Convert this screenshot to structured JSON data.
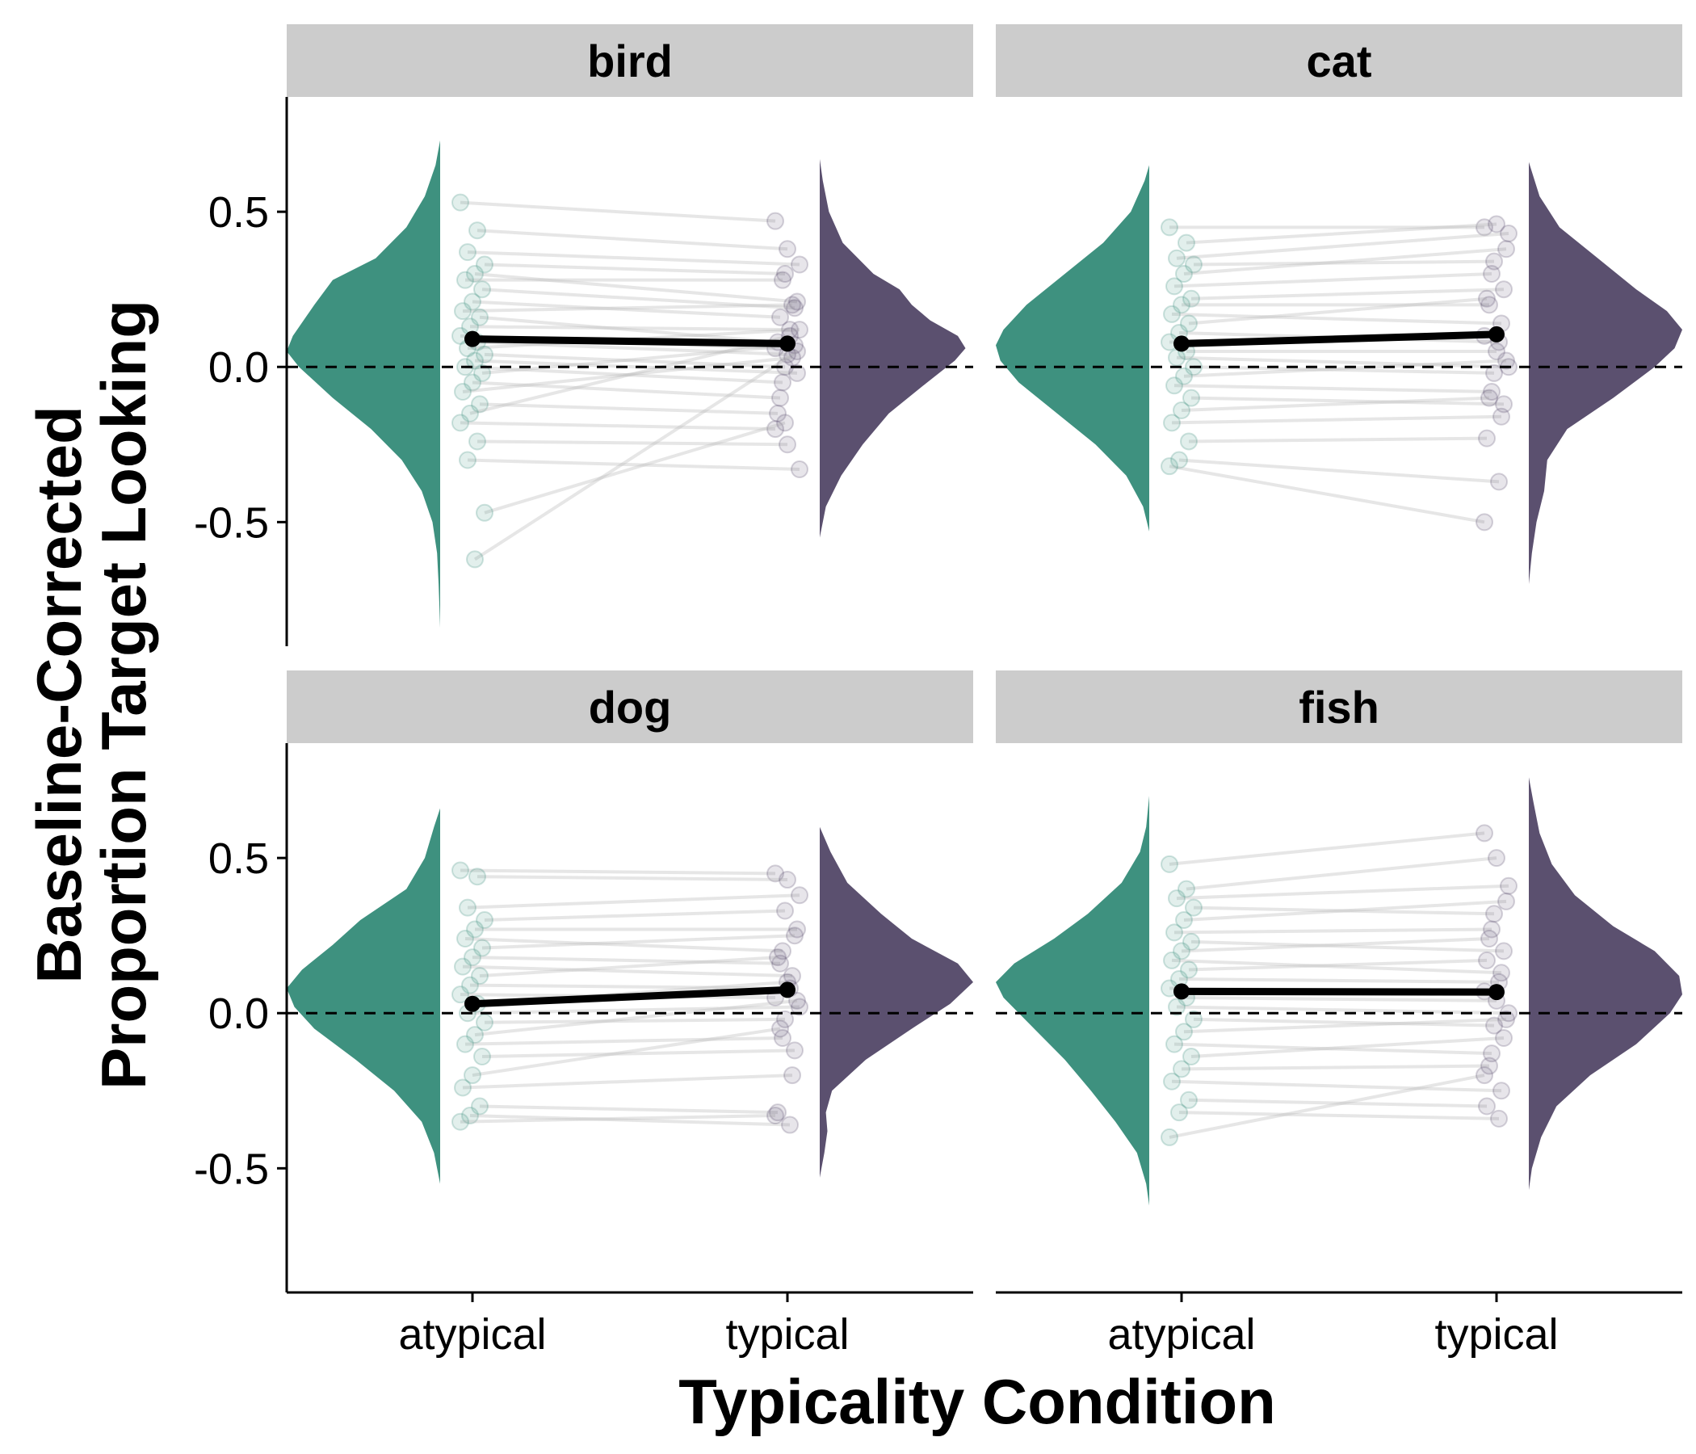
{
  "chart_data": {
    "type": "raincloud",
    "xlabel": "Typicality Condition",
    "ylabel_lines": [
      "Baseline-Corrected",
      "Proportion Target Looking"
    ],
    "categories": [
      "atypical",
      "typical"
    ],
    "yticks": [
      0.5,
      0.0,
      -0.5
    ],
    "ytick_labels": [
      "0.5",
      "0.0",
      "-0.5"
    ],
    "ylim": [
      -0.9,
      0.87
    ],
    "reference_line_y": 0,
    "colors": {
      "atypical": "#3e917f",
      "typical": "#5b506f",
      "strip": "#cccccc",
      "mean": "#000000",
      "lines": "#b8b8b8"
    },
    "panels": [
      {
        "name": "bird",
        "means": [
          0.09,
          0.075
        ],
        "error": [
          0.02,
          0.02
        ],
        "density": {
          "atypical": [
            [
              -0.84,
              0.0
            ],
            [
              -0.7,
              0.01
            ],
            [
              -0.6,
              0.02
            ],
            [
              -0.5,
              0.05
            ],
            [
              -0.4,
              0.12
            ],
            [
              -0.3,
              0.25
            ],
            [
              -0.2,
              0.45
            ],
            [
              -0.1,
              0.7
            ],
            [
              0.0,
              0.92
            ],
            [
              0.05,
              1.0
            ],
            [
              0.1,
              0.96
            ],
            [
              0.2,
              0.82
            ],
            [
              0.28,
              0.7
            ],
            [
              0.35,
              0.42
            ],
            [
              0.45,
              0.22
            ],
            [
              0.55,
              0.1
            ],
            [
              0.65,
              0.03
            ],
            [
              0.73,
              0.0
            ]
          ],
          "typical": [
            [
              -0.55,
              0.0
            ],
            [
              -0.45,
              0.04
            ],
            [
              -0.35,
              0.14
            ],
            [
              -0.25,
              0.28
            ],
            [
              -0.15,
              0.45
            ],
            [
              -0.05,
              0.7
            ],
            [
              0.02,
              0.88
            ],
            [
              0.06,
              0.95
            ],
            [
              0.1,
              0.9
            ],
            [
              0.15,
              0.72
            ],
            [
              0.2,
              0.6
            ],
            [
              0.25,
              0.52
            ],
            [
              0.3,
              0.35
            ],
            [
              0.4,
              0.15
            ],
            [
              0.5,
              0.06
            ],
            [
              0.6,
              0.02
            ],
            [
              0.67,
              0.0
            ]
          ]
        },
        "pairs": [
          [
            0.53,
            0.47
          ],
          [
            0.44,
            0.38
          ],
          [
            0.37,
            0.33
          ],
          [
            0.33,
            0.3
          ],
          [
            0.3,
            0.21
          ],
          [
            0.28,
            0.28
          ],
          [
            0.25,
            0.19
          ],
          [
            0.21,
            0.16
          ],
          [
            0.18,
            0.2
          ],
          [
            0.16,
            0.08
          ],
          [
            0.13,
            0.12
          ],
          [
            0.1,
            0.06
          ],
          [
            0.08,
            0.04
          ],
          [
            0.06,
            0.12
          ],
          [
            0.04,
            0.0
          ],
          [
            0.02,
            -0.02
          ],
          [
            0.0,
            -0.05
          ],
          [
            -0.02,
            0.07
          ],
          [
            -0.05,
            -0.1
          ],
          [
            -0.08,
            0.03
          ],
          [
            -0.12,
            -0.15
          ],
          [
            -0.15,
            0.1
          ],
          [
            -0.18,
            -0.2
          ],
          [
            -0.24,
            -0.25
          ],
          [
            -0.3,
            -0.33
          ],
          [
            -0.47,
            -0.18
          ],
          [
            -0.62,
            0.05
          ]
        ]
      },
      {
        "name": "cat",
        "means": [
          0.075,
          0.105
        ],
        "error": [
          0.02,
          0.02
        ],
        "density": {
          "atypical": [
            [
              -0.53,
              0.0
            ],
            [
              -0.45,
              0.04
            ],
            [
              -0.35,
              0.15
            ],
            [
              -0.25,
              0.35
            ],
            [
              -0.15,
              0.6
            ],
            [
              -0.05,
              0.85
            ],
            [
              0.02,
              0.97
            ],
            [
              0.07,
              1.0
            ],
            [
              0.12,
              0.95
            ],
            [
              0.2,
              0.8
            ],
            [
              0.3,
              0.55
            ],
            [
              0.4,
              0.3
            ],
            [
              0.5,
              0.12
            ],
            [
              0.6,
              0.03
            ],
            [
              0.65,
              0.0
            ]
          ],
          "typical": [
            [
              -0.7,
              0.0
            ],
            [
              -0.6,
              0.02
            ],
            [
              -0.5,
              0.05
            ],
            [
              -0.4,
              0.1
            ],
            [
              -0.3,
              0.12
            ],
            [
              -0.2,
              0.25
            ],
            [
              -0.1,
              0.55
            ],
            [
              0.0,
              0.82
            ],
            [
              0.06,
              0.95
            ],
            [
              0.12,
              1.0
            ],
            [
              0.18,
              0.9
            ],
            [
              0.25,
              0.7
            ],
            [
              0.35,
              0.45
            ],
            [
              0.45,
              0.2
            ],
            [
              0.55,
              0.07
            ],
            [
              0.66,
              0.0
            ]
          ]
        },
        "pairs": [
          [
            0.45,
            0.45
          ],
          [
            0.4,
            0.46
          ],
          [
            0.35,
            0.43
          ],
          [
            0.33,
            0.34
          ],
          [
            0.3,
            0.38
          ],
          [
            0.26,
            0.3
          ],
          [
            0.22,
            0.25
          ],
          [
            0.2,
            0.2
          ],
          [
            0.17,
            0.14
          ],
          [
            0.14,
            0.22
          ],
          [
            0.11,
            0.08
          ],
          [
            0.08,
            0.1
          ],
          [
            0.05,
            0.05
          ],
          [
            0.03,
            0.0
          ],
          [
            0.0,
            -0.02
          ],
          [
            -0.03,
            0.02
          ],
          [
            -0.06,
            -0.08
          ],
          [
            -0.1,
            -0.12
          ],
          [
            -0.14,
            -0.1
          ],
          [
            -0.18,
            -0.16
          ],
          [
            -0.24,
            -0.23
          ],
          [
            -0.3,
            -0.37
          ],
          [
            -0.32,
            -0.5
          ]
        ]
      },
      {
        "name": "dog",
        "means": [
          0.03,
          0.075
        ],
        "error": [
          0.02,
          0.02
        ],
        "density": {
          "atypical": [
            [
              -0.55,
              0.0
            ],
            [
              -0.45,
              0.04
            ],
            [
              -0.35,
              0.12
            ],
            [
              -0.25,
              0.3
            ],
            [
              -0.15,
              0.55
            ],
            [
              -0.05,
              0.82
            ],
            [
              0.02,
              0.95
            ],
            [
              0.08,
              1.0
            ],
            [
              0.14,
              0.9
            ],
            [
              0.22,
              0.7
            ],
            [
              0.3,
              0.52
            ],
            [
              0.4,
              0.22
            ],
            [
              0.5,
              0.1
            ],
            [
              0.6,
              0.04
            ],
            [
              0.66,
              0.0
            ]
          ],
          "typical": [
            [
              -0.53,
              0.0
            ],
            [
              -0.45,
              0.03
            ],
            [
              -0.38,
              0.05
            ],
            [
              -0.32,
              0.04
            ],
            [
              -0.25,
              0.08
            ],
            [
              -0.15,
              0.3
            ],
            [
              -0.05,
              0.6
            ],
            [
              0.03,
              0.85
            ],
            [
              0.1,
              1.0
            ],
            [
              0.16,
              0.9
            ],
            [
              0.24,
              0.6
            ],
            [
              0.32,
              0.4
            ],
            [
              0.42,
              0.18
            ],
            [
              0.52,
              0.07
            ],
            [
              0.6,
              0.0
            ]
          ]
        },
        "pairs": [
          [
            0.46,
            0.45
          ],
          [
            0.44,
            0.43
          ],
          [
            0.34,
            0.38
          ],
          [
            0.3,
            0.33
          ],
          [
            0.27,
            0.27
          ],
          [
            0.24,
            0.2
          ],
          [
            0.21,
            0.25
          ],
          [
            0.18,
            0.16
          ],
          [
            0.15,
            0.12
          ],
          [
            0.12,
            0.18
          ],
          [
            0.09,
            0.08
          ],
          [
            0.06,
            0.05
          ],
          [
            0.03,
            0.1
          ],
          [
            0.0,
            0.02
          ],
          [
            -0.03,
            -0.02
          ],
          [
            -0.07,
            0.04
          ],
          [
            -0.1,
            -0.08
          ],
          [
            -0.14,
            -0.12
          ],
          [
            -0.2,
            -0.05
          ],
          [
            -0.24,
            -0.2
          ],
          [
            -0.3,
            -0.32
          ],
          [
            -0.33,
            -0.36
          ],
          [
            -0.35,
            -0.33
          ]
        ]
      },
      {
        "name": "fish",
        "means": [
          0.07,
          0.068
        ],
        "error": [
          0.02,
          0.02
        ],
        "density": {
          "atypical": [
            [
              -0.62,
              0.0
            ],
            [
              -0.55,
              0.02
            ],
            [
              -0.45,
              0.08
            ],
            [
              -0.35,
              0.22
            ],
            [
              -0.25,
              0.38
            ],
            [
              -0.15,
              0.55
            ],
            [
              -0.05,
              0.75
            ],
            [
              0.05,
              0.95
            ],
            [
              0.1,
              1.0
            ],
            [
              0.16,
              0.88
            ],
            [
              0.24,
              0.62
            ],
            [
              0.32,
              0.4
            ],
            [
              0.42,
              0.18
            ],
            [
              0.52,
              0.06
            ],
            [
              0.6,
              0.02
            ],
            [
              0.7,
              0.0
            ]
          ],
          "typical": [
            [
              -0.57,
              0.0
            ],
            [
              -0.5,
              0.02
            ],
            [
              -0.4,
              0.08
            ],
            [
              -0.3,
              0.18
            ],
            [
              -0.2,
              0.4
            ],
            [
              -0.1,
              0.7
            ],
            [
              0.0,
              0.92
            ],
            [
              0.06,
              1.0
            ],
            [
              0.12,
              0.98
            ],
            [
              0.2,
              0.82
            ],
            [
              0.28,
              0.55
            ],
            [
              0.38,
              0.3
            ],
            [
              0.48,
              0.15
            ],
            [
              0.58,
              0.07
            ],
            [
              0.68,
              0.03
            ],
            [
              0.76,
              0.0
            ]
          ]
        },
        "pairs": [
          [
            0.48,
            0.58
          ],
          [
            0.4,
            0.5
          ],
          [
            0.37,
            0.41
          ],
          [
            0.34,
            0.32
          ],
          [
            0.3,
            0.36
          ],
          [
            0.26,
            0.27
          ],
          [
            0.23,
            0.2
          ],
          [
            0.2,
            0.24
          ],
          [
            0.17,
            0.13
          ],
          [
            0.14,
            0.17
          ],
          [
            0.11,
            0.1
          ],
          [
            0.08,
            0.07
          ],
          [
            0.05,
            0.04
          ],
          [
            0.02,
            0.0
          ],
          [
            -0.02,
            -0.04
          ],
          [
            -0.06,
            -0.02
          ],
          [
            -0.1,
            -0.13
          ],
          [
            -0.14,
            -0.08
          ],
          [
            -0.18,
            -0.17
          ],
          [
            -0.22,
            -0.25
          ],
          [
            -0.28,
            -0.3
          ],
          [
            -0.32,
            -0.34
          ],
          [
            -0.4,
            -0.2
          ]
        ]
      }
    ]
  }
}
